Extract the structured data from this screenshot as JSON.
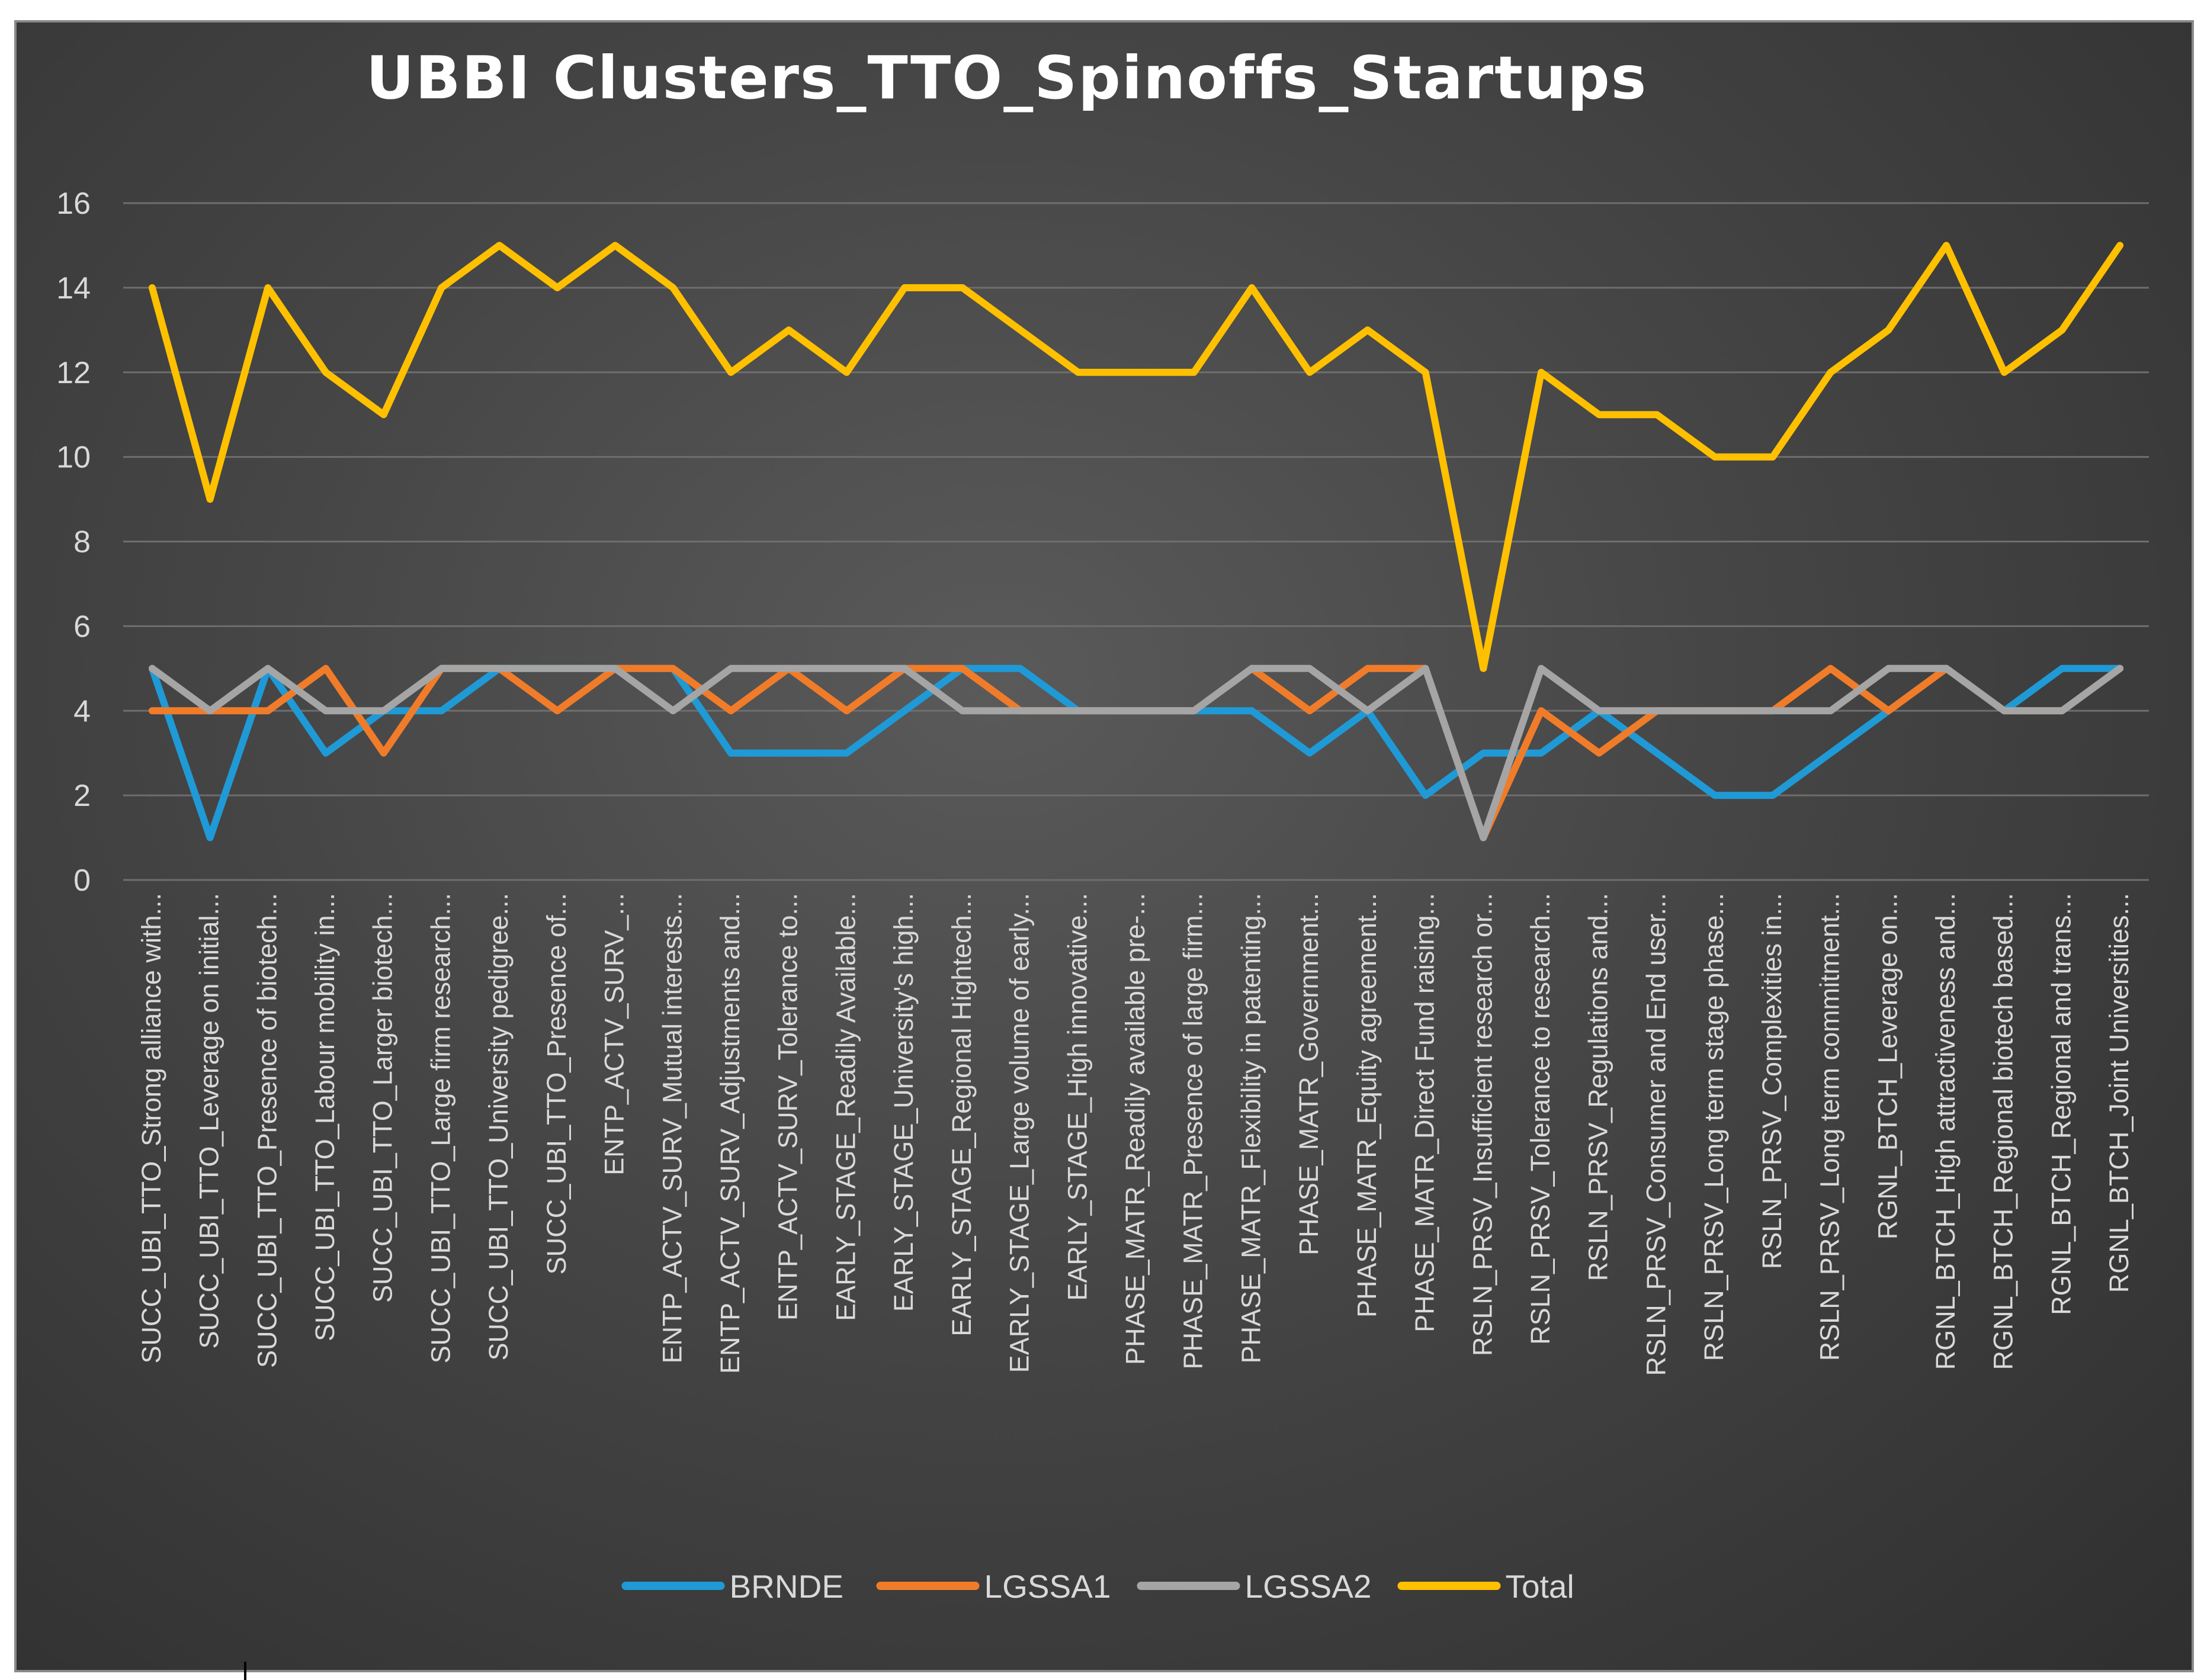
{
  "chart_data": {
    "type": "line",
    "title": "UBBI Clusters_TTO_Spinoffs_Startups",
    "xlabel": "",
    "ylabel": "",
    "ylim": [
      0,
      16
    ],
    "yticks": [
      0,
      2,
      4,
      6,
      8,
      10,
      12,
      14,
      16
    ],
    "grid": true,
    "legend_position": "bottom",
    "categories": [
      "SUCC_UBI_TTO_Strong alliance with...",
      "SUCC_UBI_TTO_Leverage on initial...",
      "SUCC_UBI_TTO_Presence of biotech...",
      "SUCC_UBI_TTO_Labour mobility in...",
      "SUCC_UBI_TTO_Larger biotech...",
      "SUCC_UBI_TTO_Large firm research...",
      "SUCC_UBI_TTO_University pedigree...",
      "SUCC_UBI_TTO_Presence of...",
      "ENTP_ACTV_SURV_...",
      "ENTP_ACTV_SURV_Mutual interests...",
      "ENTP_ACTV_SURV_Adjustments and...",
      "ENTP_ACTV_SURV_Tolerance to...",
      "EARLY_STAGE_Readily Available...",
      "EARLY_STAGE_University's high...",
      "EARLY_STAGE_Regional Hightech...",
      "EARLY_STAGE_Large volume of early...",
      "EARLY_STAGE_High innovative...",
      "PHASE_MATR_Readily available pre-...",
      "PHASE_MATR_Presence of large firm...",
      "PHASE_MATR_Flexibility in patenting...",
      "PHASE_MATR_Government...",
      "PHASE_MATR_Equity agreement...",
      "PHASE_MATR_Direct Fund raising...",
      "RSLN_PRSV_Insufficient research or...",
      "RSLN_PRSV_Tolerance to research...",
      "RSLN_PRSV_Regulations and...",
      "RSLN_PRSV_Consumer and End user...",
      "RSLN_PRSV_Long term stage phase...",
      "RSLN_PRSV_Complexities in...",
      "RSLN_PRSV_Long term commitment...",
      "RGNL_BTCH_Leverage on...",
      "RGNL_BTCH_High attractiveness and...",
      "RGNL_BTCH_Regional biotech based...",
      "RGNL_BTCH_Regional and trans...",
      "RGNL_BTCH_Joint Universities..."
    ],
    "series": [
      {
        "name": "BRNDE",
        "color": "#1f9ad6",
        "values": [
          5,
          1,
          5,
          3,
          4,
          4,
          5,
          5,
          5,
          5,
          3,
          3,
          3,
          4,
          5,
          5,
          4,
          4,
          4,
          4,
          3,
          4,
          2,
          3,
          3,
          4,
          3,
          2,
          2,
          3,
          4,
          5,
          4,
          5,
          5
        ]
      },
      {
        "name": "LGSSA1",
        "color": "#f07c2a",
        "values": [
          4,
          4,
          4,
          5,
          3,
          5,
          5,
          4,
          5,
          5,
          4,
          5,
          4,
          5,
          5,
          4,
          4,
          4,
          4,
          5,
          4,
          5,
          5,
          1,
          4,
          3,
          4,
          4,
          4,
          5,
          4,
          5,
          4,
          4,
          5
        ]
      },
      {
        "name": "LGSSA2",
        "color": "#a5a5a5",
        "values": [
          5,
          4,
          5,
          4,
          4,
          5,
          5,
          5,
          5,
          4,
          5,
          5,
          5,
          5,
          4,
          4,
          4,
          4,
          4,
          5,
          5,
          4,
          5,
          1,
          5,
          4,
          4,
          4,
          4,
          4,
          5,
          5,
          4,
          4,
          5
        ]
      },
      {
        "name": "Total",
        "color": "#ffc000",
        "values": [
          14,
          9,
          14,
          12,
          11,
          14,
          15,
          14,
          15,
          14,
          12,
          13,
          12,
          14,
          14,
          13,
          12,
          12,
          12,
          14,
          12,
          13,
          12,
          5,
          12,
          11,
          11,
          10,
          10,
          12,
          13,
          15,
          12,
          13,
          15
        ]
      }
    ]
  }
}
